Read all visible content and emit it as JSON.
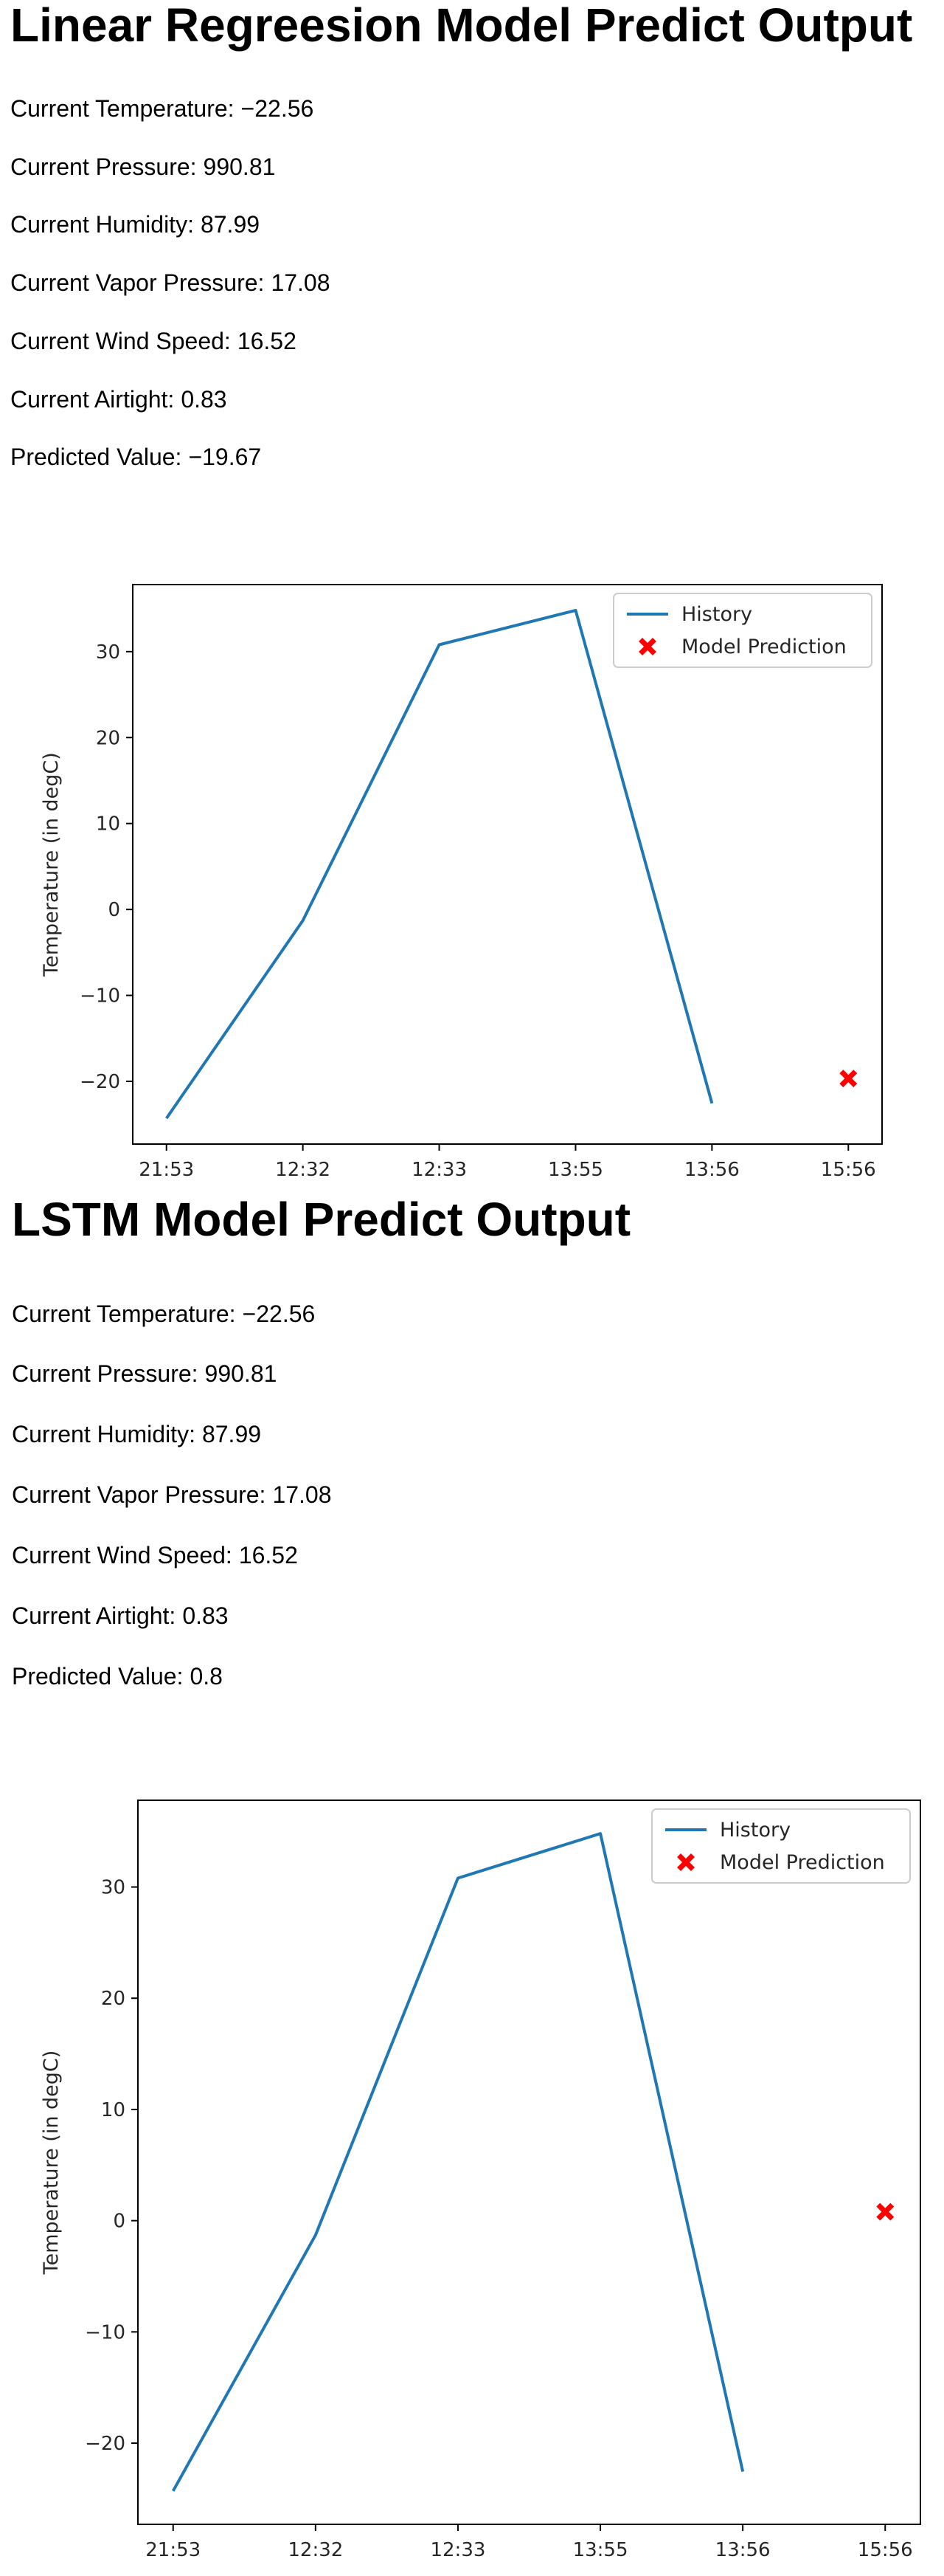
{
  "sections": [
    {
      "title": "Linear Regreesion Model Predict Output",
      "stats": [
        {
          "label": "Current Temperature:",
          "value": "−22.56"
        },
        {
          "label": "Current Pressure:",
          "value": "990.81"
        },
        {
          "label": "Current Humidity:",
          "value": "87.99"
        },
        {
          "label": "Current Vapor Pressure:",
          "value": "17.08"
        },
        {
          "label": "Current Wind Speed:",
          "value": "16.52"
        },
        {
          "label": "Current Airtight:",
          "value": "0.83"
        },
        {
          "label": "Predicted Value:",
          "value": "−19.67"
        }
      ]
    },
    {
      "title": "LSTM Model Predict Output",
      "stats": [
        {
          "label": "Current Temperature:",
          "value": "−22.56"
        },
        {
          "label": "Current Pressure:",
          "value": "990.81"
        },
        {
          "label": "Current Humidity:",
          "value": "87.99"
        },
        {
          "label": "Current Vapor Pressure:",
          "value": "17.08"
        },
        {
          "label": "Current Wind Speed:",
          "value": "16.52"
        },
        {
          "label": "Current Airtight:",
          "value": "0.83"
        },
        {
          "label": "Predicted Value:",
          "value": "0.8"
        }
      ]
    }
  ],
  "chart_data": [
    {
      "type": "line",
      "categories": [
        "21:53",
        "12:32",
        "12:33",
        "13:55",
        "13:56",
        "15:56"
      ],
      "series": [
        {
          "name": "History",
          "color": "#1f77b4",
          "marker": "line",
          "points": [
            [
              0,
              -24.3
            ],
            [
              1,
              -1.3
            ],
            [
              2,
              30.8
            ],
            [
              3,
              34.8
            ],
            [
              4,
              -22.56
            ]
          ]
        },
        {
          "name": "Model Prediction",
          "color": "#ff0000",
          "marker": "X",
          "points": [
            [
              5,
              -19.67
            ]
          ]
        }
      ],
      "xlabel": "",
      "ylabel": "Temperature (in degC)",
      "yticks": [
        -20,
        -10,
        0,
        10,
        20,
        30
      ],
      "ylim": [
        -27.3,
        37.8
      ],
      "grid": false,
      "legend": "top-right"
    },
    {
      "type": "line",
      "categories": [
        "21:53",
        "12:32",
        "12:33",
        "13:55",
        "13:56",
        "15:56"
      ],
      "series": [
        {
          "name": "History",
          "color": "#1f77b4",
          "marker": "line",
          "points": [
            [
              0,
              -24.3
            ],
            [
              1,
              -1.3
            ],
            [
              2,
              30.8
            ],
            [
              3,
              34.8
            ],
            [
              4,
              -22.56
            ]
          ]
        },
        {
          "name": "Model Prediction",
          "color": "#ff0000",
          "marker": "X",
          "points": [
            [
              5,
              0.8
            ]
          ]
        }
      ],
      "xlabel": "",
      "ylabel": "Temperature (in degC)",
      "yticks": [
        -20,
        -10,
        0,
        10,
        20,
        30
      ],
      "ylim": [
        -27.3,
        37.8
      ],
      "grid": false,
      "legend": "top-right"
    }
  ]
}
